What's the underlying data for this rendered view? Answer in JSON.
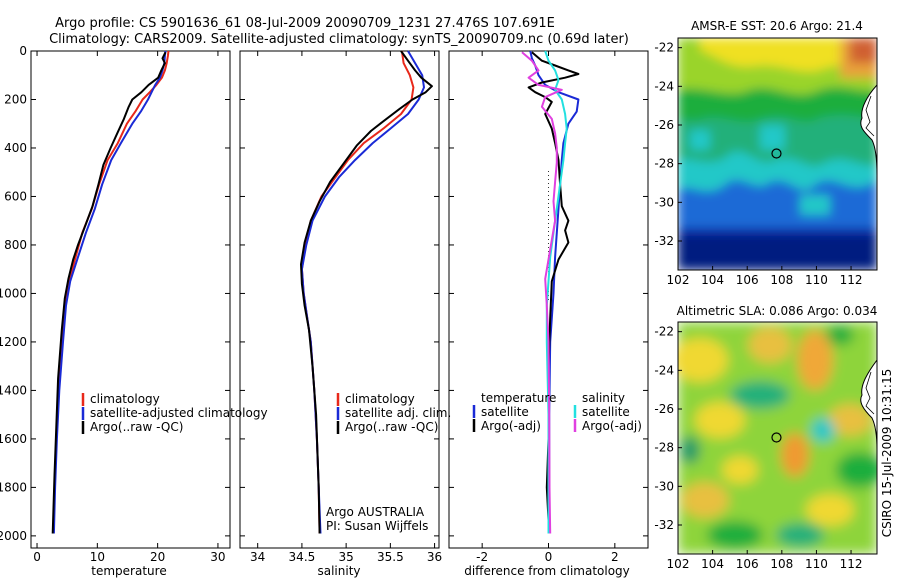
{
  "header": {
    "line1": "Argo profile: CS 5901636_61 08-Jul-2009 20090709_1231 27.476S 107.691E",
    "line2": "Climatology: CARS2009. Satellite-adjusted climatology: synTS_20090709.nc (0.69d later)"
  },
  "side_stamp": "CSIRO 15-Jul-2009 10:31:15",
  "colors": {
    "climatology": "#e8281a",
    "satellite": "#1a2ad6",
    "argo": "#000000",
    "sal_satellite": "#22e0e0",
    "sal_argo": "#e040e0"
  },
  "chart_data": [
    {
      "type": "line",
      "id": "temperature-profile",
      "xlabel": "temperature",
      "xlim": [
        -1,
        32
      ],
      "ylim": [
        2050,
        0
      ],
      "xticks": [
        "0",
        "10",
        "20",
        "30"
      ],
      "yticks": [
        "0",
        "200",
        "400",
        "600",
        "800",
        "1000",
        "1200",
        "1400",
        "1600",
        "1800",
        "2000"
      ],
      "legend": [
        "climatology",
        "satellite-adjusted climatology",
        "Argo(..raw -QC)"
      ],
      "series": [
        {
          "name": "climatology",
          "color_key": "climatology",
          "points": [
            [
              21.8,
              0
            ],
            [
              21.7,
              20
            ],
            [
              21.5,
              50
            ],
            [
              21.2,
              80
            ],
            [
              20.7,
              110
            ],
            [
              19.8,
              140
            ],
            [
              18.7,
              170
            ],
            [
              17.5,
              200
            ],
            [
              16.3,
              250
            ],
            [
              14.9,
              300
            ],
            [
              13.4,
              380
            ],
            [
              11.7,
              450
            ],
            [
              10.3,
              550
            ],
            [
              9.1,
              650
            ],
            [
              7.5,
              750
            ],
            [
              6.4,
              850
            ],
            [
              5.3,
              950
            ],
            [
              4.6,
              1050
            ],
            [
              4.2,
              1200
            ],
            [
              3.6,
              1400
            ],
            [
              3.2,
              1600
            ],
            [
              2.9,
              1800
            ],
            [
              2.7,
              1990
            ]
          ]
        },
        {
          "name": "satellite-adjusted climatology",
          "color_key": "satellite",
          "points": [
            [
              21.3,
              0
            ],
            [
              21.2,
              20
            ],
            [
              21.1,
              50
            ],
            [
              20.8,
              80
            ],
            [
              20.4,
              110
            ],
            [
              19.6,
              140
            ],
            [
              19.0,
              170
            ],
            [
              18.4,
              200
            ],
            [
              17.2,
              250
            ],
            [
              15.8,
              300
            ],
            [
              13.9,
              380
            ],
            [
              12.3,
              450
            ],
            [
              10.8,
              550
            ],
            [
              9.6,
              650
            ],
            [
              8.1,
              750
            ],
            [
              6.8,
              850
            ],
            [
              5.5,
              950
            ],
            [
              4.8,
              1050
            ],
            [
              4.3,
              1200
            ],
            [
              3.7,
              1400
            ],
            [
              3.3,
              1600
            ],
            [
              3.0,
              1800
            ],
            [
              2.8,
              1990
            ]
          ]
        },
        {
          "name": "Argo(..raw -QC)",
          "color_key": "argo",
          "points": [
            [
              21.3,
              5
            ],
            [
              20.8,
              30
            ],
            [
              21.2,
              50
            ],
            [
              20.6,
              80
            ],
            [
              20.1,
              110
            ],
            [
              18.5,
              140
            ],
            [
              17.3,
              170
            ],
            [
              15.8,
              200
            ],
            [
              15.2,
              230
            ],
            [
              14.4,
              280
            ],
            [
              13.3,
              340
            ],
            [
              12.2,
              400
            ],
            [
              11.0,
              470
            ],
            [
              10.2,
              550
            ],
            [
              9.2,
              640
            ],
            [
              8.0,
              720
            ],
            [
              6.8,
              800
            ],
            [
              6.0,
              860
            ],
            [
              5.2,
              940
            ],
            [
              4.6,
              1020
            ],
            [
              4.1,
              1150
            ],
            [
              3.5,
              1350
            ],
            [
              3.2,
              1550
            ],
            [
              2.9,
              1750
            ],
            [
              2.6,
              1990
            ]
          ]
        }
      ]
    },
    {
      "type": "line",
      "id": "salinity-profile",
      "xlabel": "salinity",
      "xlim": [
        33.8,
        36.05
      ],
      "ylim": [
        2050,
        0
      ],
      "xticks": [
        "34",
        "34.5",
        "35",
        "35.5",
        "36"
      ],
      "legend": [
        "climatology",
        "satellite adj. clim.",
        "Argo(..raw -QC)"
      ],
      "annotation": [
        "Argo AUSTRALIA",
        "PI: Susan Wijffels"
      ],
      "series": [
        {
          "name": "climatology",
          "color_key": "climatology",
          "points": [
            [
              35.63,
              0
            ],
            [
              35.65,
              50
            ],
            [
              35.72,
              100
            ],
            [
              35.76,
              150
            ],
            [
              35.74,
              200
            ],
            [
              35.62,
              260
            ],
            [
              35.42,
              320
            ],
            [
              35.2,
              380
            ],
            [
              35.02,
              450
            ],
            [
              34.88,
              520
            ],
            [
              34.72,
              600
            ],
            [
              34.6,
              700
            ],
            [
              34.54,
              800
            ],
            [
              34.5,
              900
            ],
            [
              34.52,
              1000
            ],
            [
              34.56,
              1100
            ],
            [
              34.6,
              1200
            ],
            [
              34.64,
              1400
            ],
            [
              34.67,
              1600
            ],
            [
              34.69,
              1800
            ],
            [
              34.7,
              1990
            ]
          ]
        },
        {
          "name": "satellite adj. clim.",
          "color_key": "satellite",
          "points": [
            [
              35.7,
              0
            ],
            [
              35.78,
              50
            ],
            [
              35.86,
              100
            ],
            [
              35.88,
              150
            ],
            [
              35.82,
              200
            ],
            [
              35.7,
              260
            ],
            [
              35.5,
              320
            ],
            [
              35.3,
              380
            ],
            [
              35.1,
              450
            ],
            [
              34.92,
              520
            ],
            [
              34.76,
              600
            ],
            [
              34.62,
              700
            ],
            [
              34.55,
              800
            ],
            [
              34.5,
              900
            ],
            [
              34.52,
              1000
            ],
            [
              34.56,
              1100
            ],
            [
              34.6,
              1200
            ],
            [
              34.64,
              1400
            ],
            [
              34.67,
              1600
            ],
            [
              34.69,
              1800
            ],
            [
              34.71,
              1990
            ]
          ]
        },
        {
          "name": "Argo(..raw -QC)",
          "color_key": "argo",
          "points": [
            [
              35.62,
              0
            ],
            [
              35.7,
              40
            ],
            [
              35.78,
              80
            ],
            [
              35.85,
              110
            ],
            [
              35.97,
              145
            ],
            [
              35.9,
              170
            ],
            [
              35.75,
              200
            ],
            [
              35.6,
              240
            ],
            [
              35.42,
              290
            ],
            [
              35.28,
              330
            ],
            [
              35.12,
              390
            ],
            [
              34.98,
              460
            ],
            [
              34.82,
              540
            ],
            [
              34.7,
              620
            ],
            [
              34.6,
              700
            ],
            [
              34.53,
              790
            ],
            [
              34.49,
              880
            ],
            [
              34.5,
              960
            ],
            [
              34.53,
              1050
            ],
            [
              34.58,
              1150
            ],
            [
              34.62,
              1300
            ],
            [
              34.66,
              1500
            ],
            [
              34.69,
              1800
            ],
            [
              34.7,
              1990
            ]
          ]
        }
      ]
    },
    {
      "type": "line",
      "id": "difference-profile",
      "xlabel": "difference from climatology",
      "xlim": [
        -3,
        3
      ],
      "ylim": [
        2050,
        0
      ],
      "xticks": [
        "-2",
        "0",
        "2"
      ],
      "legend_groups": [
        {
          "heading": "temperature",
          "items": [
            "satellite",
            "Argo(-adj)"
          ]
        },
        {
          "heading": "salinity",
          "items": [
            "satellite",
            "Argo(-adj)"
          ]
        }
      ],
      "series": [
        {
          "name": "temperature satellite",
          "color_key": "satellite",
          "points": [
            [
              -0.55,
              0
            ],
            [
              -0.5,
              30
            ],
            [
              -0.4,
              60
            ],
            [
              -0.3,
              100
            ],
            [
              -0.1,
              140
            ],
            [
              0.3,
              170
            ],
            [
              0.9,
              200
            ],
            [
              0.85,
              250
            ],
            [
              0.6,
              300
            ],
            [
              0.45,
              380
            ],
            [
              0.4,
              450
            ],
            [
              0.35,
              550
            ],
            [
              0.3,
              650
            ],
            [
              0.25,
              750
            ],
            [
              0.2,
              850
            ],
            [
              0.15,
              1000
            ],
            [
              0.05,
              1200
            ],
            [
              0.02,
              1500
            ],
            [
              0.02,
              1990
            ]
          ]
        },
        {
          "name": "temperature Argo(-adj)",
          "color_key": "argo",
          "points": [
            [
              -0.5,
              5
            ],
            [
              -0.2,
              40
            ],
            [
              0.2,
              60
            ],
            [
              0.6,
              80
            ],
            [
              0.9,
              95
            ],
            [
              0.5,
              110
            ],
            [
              -0.2,
              130
            ],
            [
              -0.6,
              150
            ],
            [
              -0.4,
              170
            ],
            [
              -0.1,
              190
            ],
            [
              0.1,
              210
            ],
            [
              -0.1,
              260
            ],
            [
              0.1,
              320
            ],
            [
              0.2,
              380
            ],
            [
              0.3,
              450
            ],
            [
              0.35,
              550
            ],
            [
              0.4,
              640
            ],
            [
              0.6,
              700
            ],
            [
              0.5,
              740
            ],
            [
              0.6,
              790
            ],
            [
              0.3,
              860
            ],
            [
              0.1,
              950
            ],
            [
              0.05,
              1100
            ],
            [
              0.0,
              1300
            ],
            [
              0.0,
              1600
            ],
            [
              -0.05,
              1800
            ],
            [
              0.02,
              1990
            ]
          ]
        },
        {
          "name": "salinity satellite",
          "color_key": "sal_satellite",
          "points": [
            [
              -0.1,
              0
            ],
            [
              0.0,
              40
            ],
            [
              0.2,
              80
            ],
            [
              0.3,
              120
            ],
            [
              0.2,
              160
            ],
            [
              0.4,
              200
            ],
            [
              0.5,
              260
            ],
            [
              0.55,
              320
            ],
            [
              0.5,
              380
            ],
            [
              0.45,
              450
            ],
            [
              0.35,
              550
            ],
            [
              0.25,
              650
            ],
            [
              0.15,
              750
            ],
            [
              0.05,
              850
            ],
            [
              0.0,
              950
            ],
            [
              -0.05,
              1050
            ],
            [
              -0.05,
              1200
            ],
            [
              0.0,
              1500
            ],
            [
              0.0,
              1990
            ]
          ]
        },
        {
          "name": "salinity Argo(-adj)",
          "color_key": "sal_argo",
          "points": [
            [
              -0.8,
              5
            ],
            [
              -0.5,
              40
            ],
            [
              -0.3,
              80
            ],
            [
              -0.6,
              110
            ],
            [
              -0.3,
              140
            ],
            [
              0.4,
              160
            ],
            [
              -0.1,
              190
            ],
            [
              -0.2,
              230
            ],
            [
              0.1,
              280
            ],
            [
              0.2,
              340
            ],
            [
              0.25,
              400
            ],
            [
              0.25,
              460
            ],
            [
              0.2,
              540
            ],
            [
              0.15,
              620
            ],
            [
              0.2,
              700
            ],
            [
              0.1,
              780
            ],
            [
              0.0,
              860
            ],
            [
              -0.1,
              940
            ],
            [
              -0.05,
              1050
            ],
            [
              0.0,
              1200
            ],
            [
              0.02,
              1500
            ],
            [
              0.03,
              1800
            ],
            [
              0.05,
              1990
            ]
          ]
        }
      ]
    },
    {
      "type": "heatmap",
      "id": "amsr-sst-map",
      "title": "AMSR-E SST: 20.6 Argo: 21.4",
      "xlim": [
        102,
        113.5
      ],
      "ylim": [
        -33.5,
        -21.5
      ],
      "xticks": [
        "102",
        "104",
        "106",
        "108",
        "110",
        "112"
      ],
      "yticks": [
        "-22",
        "-24",
        "-26",
        "-28",
        "-30",
        "-32"
      ],
      "marker": {
        "lon": 107.691,
        "lat": -27.476
      }
    },
    {
      "type": "heatmap",
      "id": "altimetric-sla-map",
      "title": "Altimetric SLA: 0.086 Argo: 0.034",
      "xlim": [
        102,
        113.5
      ],
      "ylim": [
        -33.5,
        -21.5
      ],
      "xticks": [
        "102",
        "104",
        "106",
        "108",
        "110",
        "112"
      ],
      "yticks": [
        "-22",
        "-24",
        "-26",
        "-28",
        "-30",
        "-32"
      ],
      "marker": {
        "lon": 107.691,
        "lat": -27.476
      }
    }
  ]
}
